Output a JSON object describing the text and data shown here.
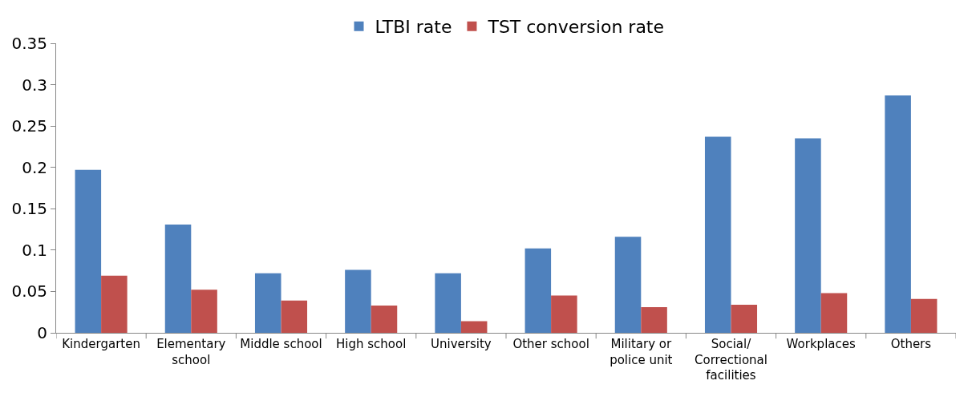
{
  "chart_data": {
    "type": "bar",
    "categories": [
      "Kindergarten",
      "Elementary school",
      "Middle school",
      "High school",
      "University",
      "Other school",
      "Military or police unit",
      "Social/ Correctional facilities",
      "Workplaces",
      "Others"
    ],
    "series": [
      {
        "name": "LTBI rate",
        "color": "#4f81bd",
        "values": [
          0.197,
          0.131,
          0.072,
          0.076,
          0.072,
          0.102,
          0.116,
          0.237,
          0.235,
          0.287
        ]
      },
      {
        "name": "TST conversion rate",
        "color": "#c0504d",
        "values": [
          0.069,
          0.052,
          0.039,
          0.033,
          0.014,
          0.045,
          0.031,
          0.034,
          0.048,
          0.041
        ]
      }
    ],
    "ylim": [
      0,
      0.35
    ],
    "yticks": [
      {
        "value": 0,
        "label": "0"
      },
      0.05,
      0.1,
      0.15,
      0.2,
      0.25,
      0.3,
      0.35
    ],
    "legend": "top"
  }
}
